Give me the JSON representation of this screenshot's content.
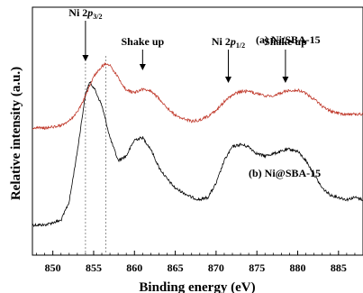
{
  "chart_data": {
    "type": "line",
    "xlabel": "Binding energy (eV)",
    "ylabel": "Relative intensity (a.u.)",
    "xlim": [
      847.5,
      888.0
    ],
    "x_ticks": [
      "850",
      "855",
      "860",
      "865",
      "870",
      "875",
      "880",
      "885"
    ],
    "y_ticks_shown": false,
    "grid": false,
    "series": [
      {
        "name": "(a) Ni/SBA-15",
        "color": "#000000",
        "x": [
          847.5,
          849,
          851,
          852,
          853,
          854,
          854.5,
          855,
          856,
          857,
          858,
          859,
          860,
          861,
          862,
          863,
          864,
          865,
          866,
          867,
          868,
          869,
          870,
          871,
          872,
          873,
          874,
          875,
          876,
          877,
          878,
          879,
          880,
          881,
          882,
          883,
          884,
          885,
          886,
          887,
          888
        ],
        "y": [
          0.1,
          0.1,
          0.12,
          0.2,
          0.42,
          0.67,
          0.72,
          0.7,
          0.62,
          0.48,
          0.38,
          0.4,
          0.47,
          0.48,
          0.43,
          0.35,
          0.3,
          0.26,
          0.24,
          0.22,
          0.21,
          0.22,
          0.28,
          0.38,
          0.44,
          0.45,
          0.44,
          0.41,
          0.4,
          0.41,
          0.42,
          0.43,
          0.42,
          0.38,
          0.32,
          0.26,
          0.23,
          0.22,
          0.21,
          0.22,
          0.21
        ]
      },
      {
        "name": "(b) Ni@SBA-15",
        "color": "#c0392b",
        "x": [
          847.5,
          849,
          851,
          852,
          853,
          854,
          855,
          856,
          856.5,
          857,
          858,
          859,
          860,
          861,
          862,
          863,
          864,
          865,
          866,
          867,
          868,
          869,
          870,
          871,
          872,
          873,
          874,
          875,
          876,
          877,
          878,
          879,
          880,
          881,
          882,
          883,
          884,
          885,
          886,
          887,
          888
        ],
        "y": [
          0.0,
          0.0,
          0.02,
          0.06,
          0.14,
          0.28,
          0.45,
          0.54,
          0.56,
          0.55,
          0.44,
          0.33,
          0.31,
          0.34,
          0.32,
          0.26,
          0.18,
          0.11,
          0.08,
          0.06,
          0.07,
          0.1,
          0.15,
          0.23,
          0.29,
          0.32,
          0.32,
          0.3,
          0.28,
          0.28,
          0.31,
          0.33,
          0.33,
          0.3,
          0.25,
          0.19,
          0.15,
          0.13,
          0.12,
          0.12,
          0.12
        ]
      }
    ],
    "vlines": [
      854.0,
      856.5
    ],
    "annotations": [
      {
        "main": "Ni 2",
        "italic": "p",
        "sub": "3/2",
        "x": 854.0
      },
      {
        "main": "Shake up",
        "x": 861.0
      },
      {
        "main": "Ni 2",
        "italic": "p",
        "sub": "1/2",
        "x": 871.5
      },
      {
        "main": "Shake up",
        "x": 878.5
      }
    ]
  }
}
